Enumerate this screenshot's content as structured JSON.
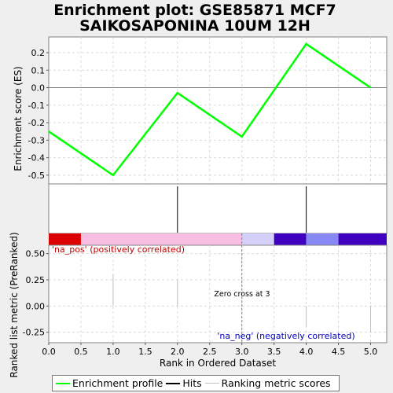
{
  "title_lines": [
    "Enrichment plot: GSE85871 MCF7",
    "SAIKOSAPONINA 10UM 12H"
  ],
  "chart_data": {
    "type": "line",
    "x": [
      0,
      1,
      2,
      3,
      4,
      5
    ],
    "series": [
      {
        "name": "Enrichment profile",
        "values": [
          -0.25,
          -0.5,
          -0.03,
          -0.28,
          0.25,
          0.0
        ]
      }
    ],
    "ylabel": "Enrichment score (ES)",
    "ylim": [
      -0.55,
      0.29
    ],
    "yticks": [
      0.2,
      0.1,
      0.0,
      -0.1,
      -0.2,
      -0.3,
      -0.4,
      -0.5
    ],
    "ytick_labels": [
      "0.2",
      "0.1",
      "0.0",
      "-0.1",
      "-0.2",
      "-0.3",
      "-0.4",
      "-0.5"
    ],
    "hits": [
      2,
      4
    ],
    "ranking": {
      "ylabel": "Ranked list metric (PreRanked)",
      "ylim": [
        -0.35,
        0.58
      ],
      "yticks": [
        0.5,
        0.25,
        0.0,
        -0.25
      ],
      "ytick_labels": [
        "0.50",
        "0.25",
        "0.00",
        "-0.25"
      ],
      "xlabel": "Rank in Ordered Dataset",
      "xlim": [
        0,
        5.25
      ],
      "xticks": [
        0,
        0.5,
        1,
        1.5,
        2,
        2.5,
        3,
        3.5,
        4,
        4.5,
        5
      ],
      "xtick_labels": [
        "0.0",
        "0.5",
        "1.0",
        "1.5",
        "2.0",
        "2.5",
        "3.0",
        "3.5",
        "4.0",
        "4.5",
        "5.0"
      ],
      "bars": [
        {
          "x": 1,
          "value": 0.3
        },
        {
          "x": 2,
          "value": 0.25
        },
        {
          "x": 4,
          "value": -0.2
        },
        {
          "x": 5,
          "value": -0.25
        }
      ],
      "zero_cross_x": 3,
      "zero_cross_label": "Zero cross at 3",
      "pos_label": "'na_pos' (positively correlated)",
      "neg_label": "'na_neg' (negatively correlated)"
    },
    "colorbar": [
      {
        "from": 0,
        "to": 0.5,
        "color": "#dc0000"
      },
      {
        "from": 0.5,
        "to": 3.0,
        "color": "#f8bee2"
      },
      {
        "from": 3.0,
        "to": 3.5,
        "color": "#d4d0fa"
      },
      {
        "from": 3.5,
        "to": 4.0,
        "color": "#4000c0"
      },
      {
        "from": 4.0,
        "to": 4.5,
        "color": "#8888f4"
      },
      {
        "from": 4.5,
        "to": 5.25,
        "color": "#4000c0"
      }
    ]
  },
  "colors": {
    "profile": "#00ff00",
    "hits": "#000000",
    "ranking": "#c0c0c0",
    "pos": "#c00000",
    "neg": "#0000c0"
  },
  "legend": {
    "profile": "Enrichment profile",
    "hits": "Hits",
    "ranking": "Ranking metric scores"
  }
}
